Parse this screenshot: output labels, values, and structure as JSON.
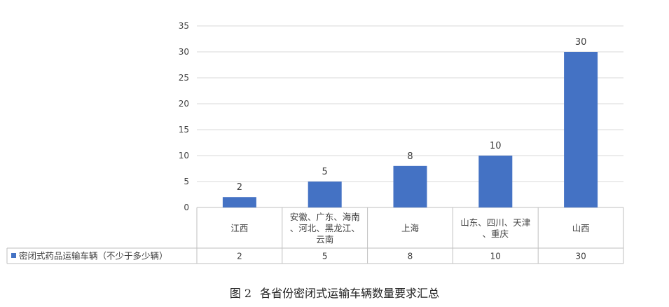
{
  "chart_data": {
    "type": "bar",
    "categories": [
      [
        "江西"
      ],
      [
        "安徽、广东、海南",
        "、河北、黑龙江、",
        "云南"
      ],
      [
        "上海"
      ],
      [
        "山东、四川、天津",
        "、重庆"
      ],
      [
        "山西"
      ]
    ],
    "series": [
      {
        "name": "密闭式药品运输车辆（不少于多少辆）",
        "values": [
          2,
          5,
          8,
          10,
          30
        ],
        "color": "#4472C4"
      }
    ],
    "data_labels": [
      "2",
      "5",
      "8",
      "10",
      "30"
    ],
    "ylim": [
      0,
      35
    ],
    "yticks": [
      0,
      5,
      10,
      15,
      20,
      25,
      30,
      35
    ],
    "grid": true,
    "legend": "data-table-left",
    "colors": {
      "bar": "#4472C4",
      "grid": "#D9D9D9",
      "axis_text": "#404040",
      "table_border": "#BFBFBF"
    }
  },
  "caption": {
    "figure_number": "图 2",
    "title": "各省份密闭式运输车辆数量要求汇总"
  }
}
